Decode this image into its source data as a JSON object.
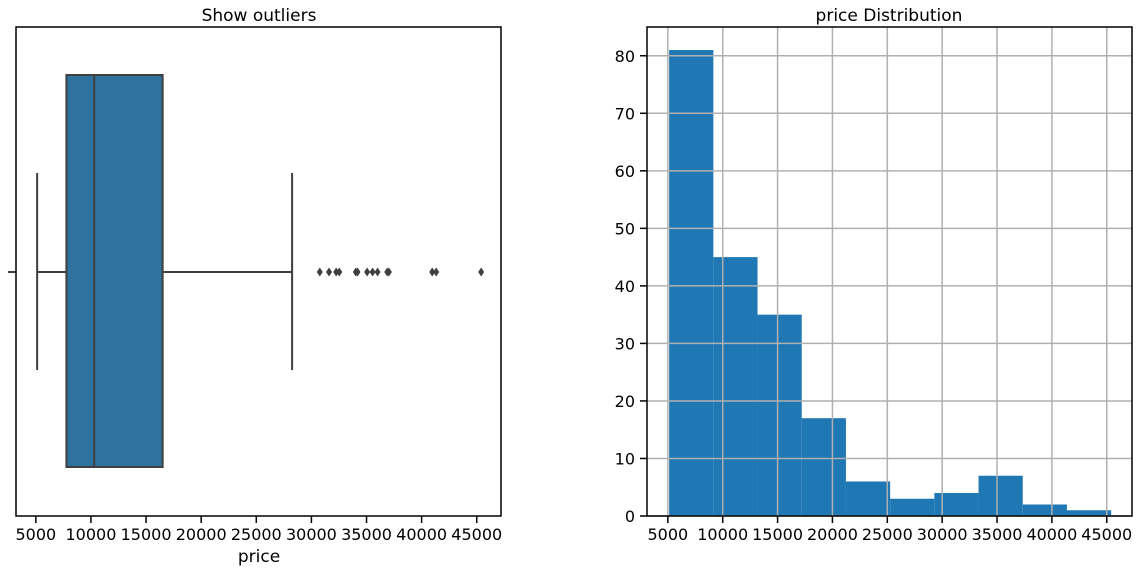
{
  "chart_data": [
    {
      "type": "box",
      "title": "Show outliers",
      "xlabel": "price",
      "ylabel": "",
      "xlim": [
        3200,
        47200
      ],
      "xticks": [
        5000,
        10000,
        15000,
        20000,
        25000,
        30000,
        35000,
        40000,
        45000
      ],
      "box": {
        "whisker_low": 5118,
        "q1": 7775,
        "median": 10295,
        "q3": 16503,
        "whisker_high": 28248
      },
      "outliers": [
        30760,
        31600,
        32250,
        32530,
        34030,
        34185,
        35055,
        35550,
        36000,
        36880,
        37030,
        40960,
        41315,
        45400
      ],
      "color": "#2e72a0",
      "line_color": "#3f3f3f",
      "grid": false
    },
    {
      "type": "histogram",
      "title": "price Distribution",
      "xlabel": "",
      "ylabel": "",
      "xlim": [
        3100,
        47300
      ],
      "ylim": [
        0,
        85
      ],
      "xticks": [
        5000,
        10000,
        15000,
        20000,
        25000,
        30000,
        35000,
        40000,
        45000
      ],
      "yticks": [
        0,
        10,
        20,
        30,
        40,
        50,
        60,
        70,
        80
      ],
      "bin_edges": [
        5118,
        9146,
        13174,
        17202,
        21230,
        25259,
        29287,
        33315,
        37343,
        41371,
        45400
      ],
      "counts": [
        81,
        45,
        35,
        17,
        6,
        3,
        4,
        7,
        2,
        1
      ],
      "color": "#1f77b4",
      "grid": true
    }
  ]
}
